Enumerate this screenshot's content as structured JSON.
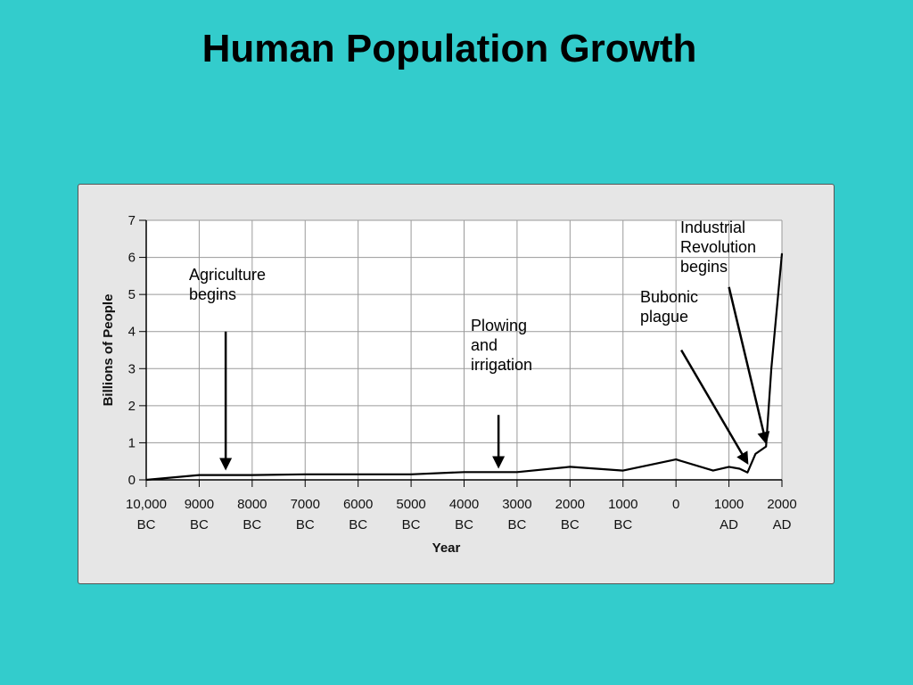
{
  "slide": {
    "title": "Human Population Growth",
    "background": "#33CCCC",
    "panel_color": "#E6E6E6"
  },
  "chart_data": {
    "type": "line",
    "title": "",
    "xlabel": "Year",
    "ylabel": "Billions of People",
    "grid": true,
    "xlim": [
      -10000,
      2000
    ],
    "ylim": [
      0,
      7
    ],
    "yticks": [
      0,
      1,
      2,
      3,
      4,
      5,
      6,
      7
    ],
    "xticks": [
      {
        "value": -10000,
        "line1": "10,000",
        "line2": "BC"
      },
      {
        "value": -9000,
        "line1": "9000",
        "line2": "BC"
      },
      {
        "value": -8000,
        "line1": "8000",
        "line2": "BC"
      },
      {
        "value": -7000,
        "line1": "7000",
        "line2": "BC"
      },
      {
        "value": -6000,
        "line1": "6000",
        "line2": "BC"
      },
      {
        "value": -5000,
        "line1": "5000",
        "line2": "BC"
      },
      {
        "value": -4000,
        "line1": "4000",
        "line2": "BC"
      },
      {
        "value": -3000,
        "line1": "3000",
        "line2": "BC"
      },
      {
        "value": -2000,
        "line1": "2000",
        "line2": "BC"
      },
      {
        "value": -1000,
        "line1": "1000",
        "line2": "BC"
      },
      {
        "value": 0,
        "line1": "0",
        "line2": ""
      },
      {
        "value": 1000,
        "line1": "1000",
        "line2": "AD"
      },
      {
        "value": 2000,
        "line1": "2000",
        "line2": "AD"
      }
    ],
    "series": [
      {
        "points": [
          [
            -10000,
            0.0
          ],
          [
            -9000,
            0.13
          ],
          [
            -8000,
            0.13
          ],
          [
            -7000,
            0.15
          ],
          [
            -6000,
            0.15
          ],
          [
            -5000,
            0.15
          ],
          [
            -4000,
            0.21
          ],
          [
            -3000,
            0.21
          ],
          [
            -2000,
            0.35
          ],
          [
            -1000,
            0.25
          ],
          [
            0,
            0.55
          ],
          [
            700,
            0.25
          ],
          [
            1000,
            0.35
          ],
          [
            1200,
            0.3
          ],
          [
            1350,
            0.2
          ],
          [
            1500,
            0.7
          ],
          [
            1700,
            0.9
          ],
          [
            1800,
            3.0
          ],
          [
            2000,
            6.1
          ]
        ]
      }
    ],
    "annotations": [
      {
        "lines": [
          "Agriculture",
          "begins"
        ],
        "arrow_from": [
          -8500,
          4.0
        ],
        "arrow_to": [
          -8500,
          0.3
        ]
      },
      {
        "lines": [
          "Plowing",
          "and",
          "irrigation"
        ],
        "arrow_from": [
          -3350,
          1.75
        ],
        "arrow_to": [
          -3350,
          0.35
        ]
      },
      {
        "lines": [
          "Bubonic",
          "plague"
        ],
        "arrow_from": [
          100,
          3.5
        ],
        "arrow_to": [
          1350,
          0.45
        ]
      },
      {
        "lines": [
          "Industrial",
          "Revolution",
          "begins"
        ],
        "arrow_from": [
          1000,
          5.2
        ],
        "arrow_to": [
          1700,
          1.0
        ]
      }
    ]
  }
}
